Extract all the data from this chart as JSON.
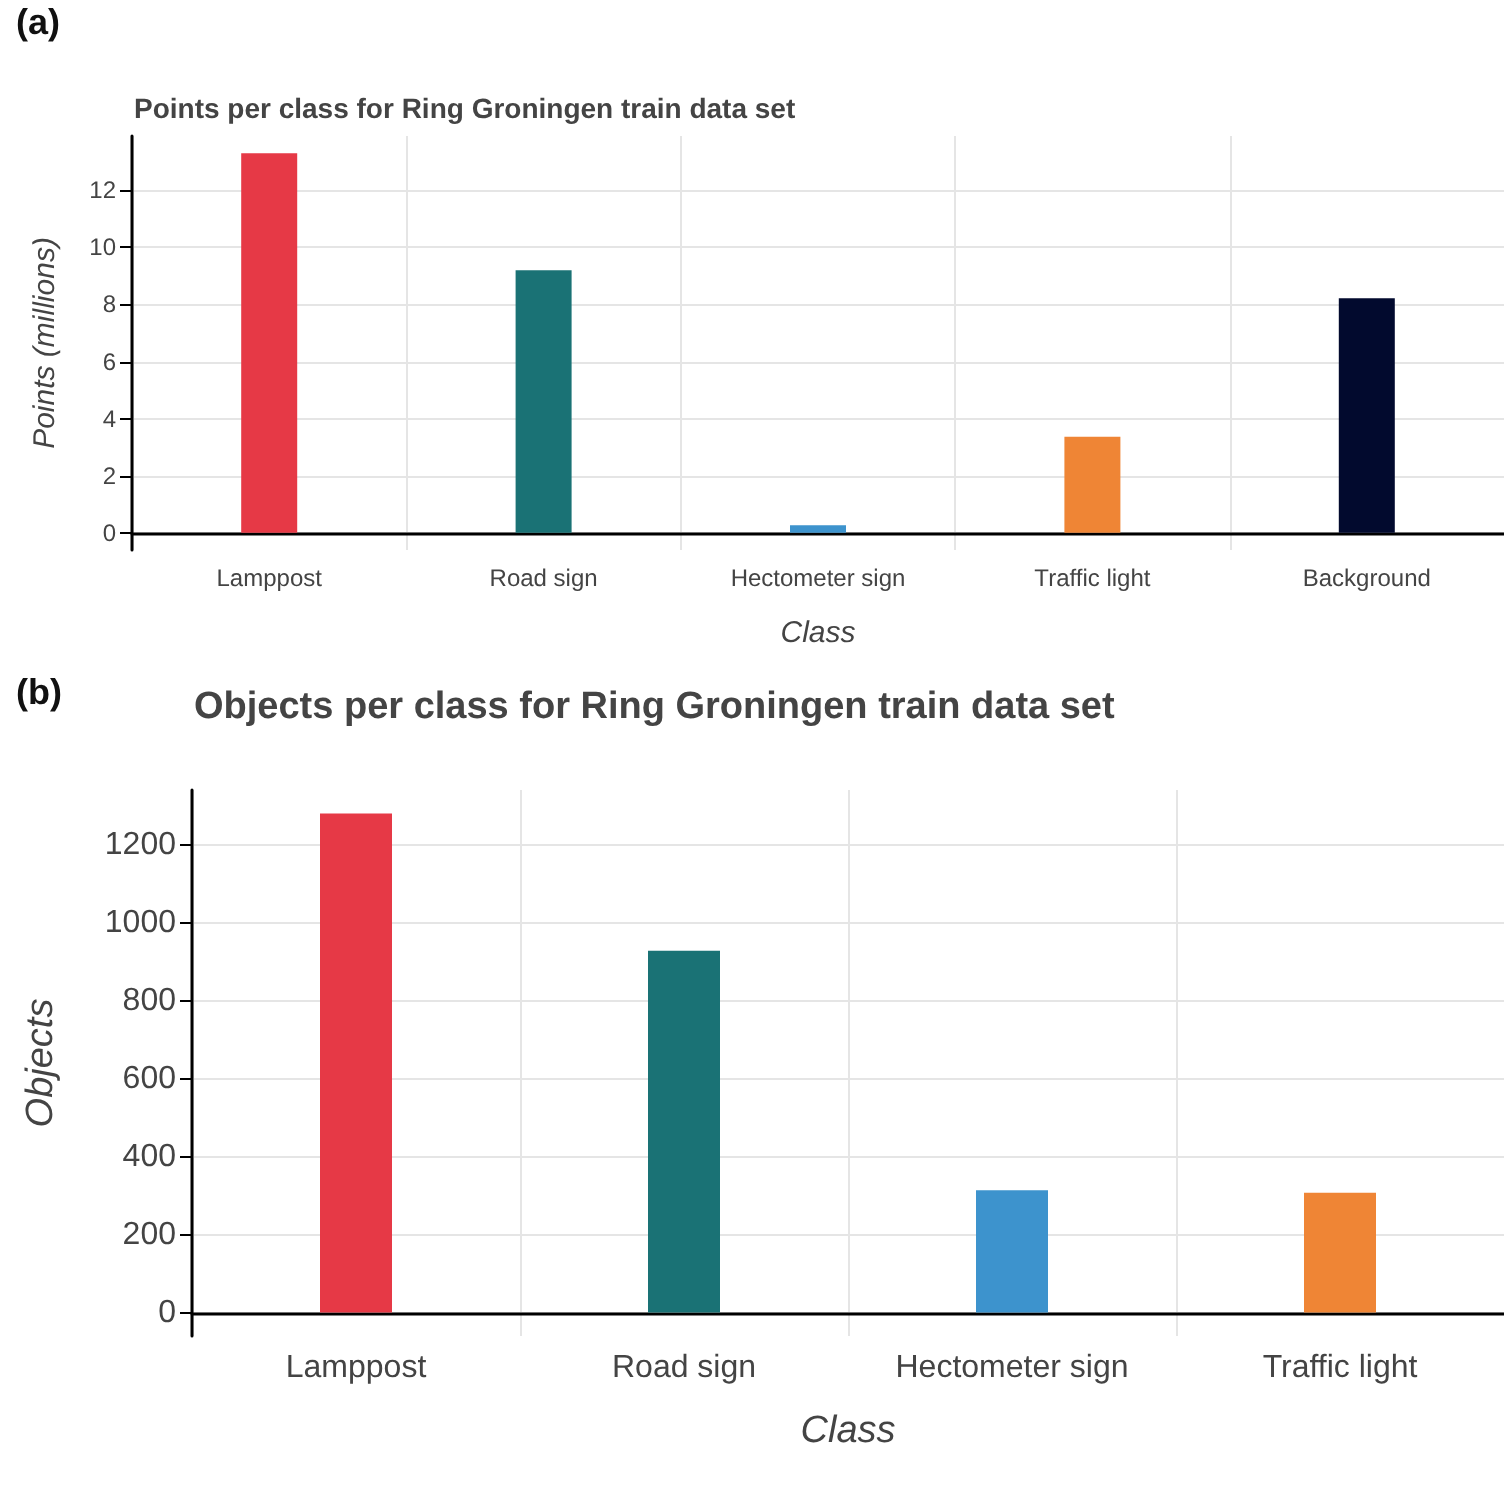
{
  "chart_data": [
    {
      "type": "bar",
      "title": "Points per class for Ring Groningen train data set",
      "annotations": [
        "(a)"
      ],
      "xlabel": "Class",
      "ylabel": "Points (millions)",
      "categories": [
        "Lamppost",
        "Road sign",
        "Hectometer sign",
        "Traffic light",
        "Background"
      ],
      "values": [
        13.3,
        9.2,
        0.27,
        3.37,
        8.22
      ],
      "colors": [
        "#e63946",
        "#1a7275",
        "#3d93cd",
        "#ef8535",
        "#020a2e"
      ],
      "ylim": [
        -0.6,
        13.9
      ],
      "yticks": [
        0,
        2,
        4,
        6,
        8,
        10,
        12
      ],
      "grid": true
    },
    {
      "type": "bar",
      "title": "Objects per class for Ring Groningen train data set",
      "annotations": [
        "(b)"
      ],
      "xlabel": "Class",
      "ylabel": "Objects",
      "categories": [
        "Lamppost",
        "Road sign",
        "Hectometer sign",
        "Traffic light"
      ],
      "values": [
        1280,
        928,
        314,
        307
      ],
      "colors": [
        "#e63946",
        "#1a7275",
        "#3d93cd",
        "#ef8535"
      ],
      "ylim": [
        -60,
        1340
      ],
      "yticks": [
        0,
        200,
        400,
        600,
        800,
        1000,
        1200
      ],
      "grid": true
    }
  ]
}
